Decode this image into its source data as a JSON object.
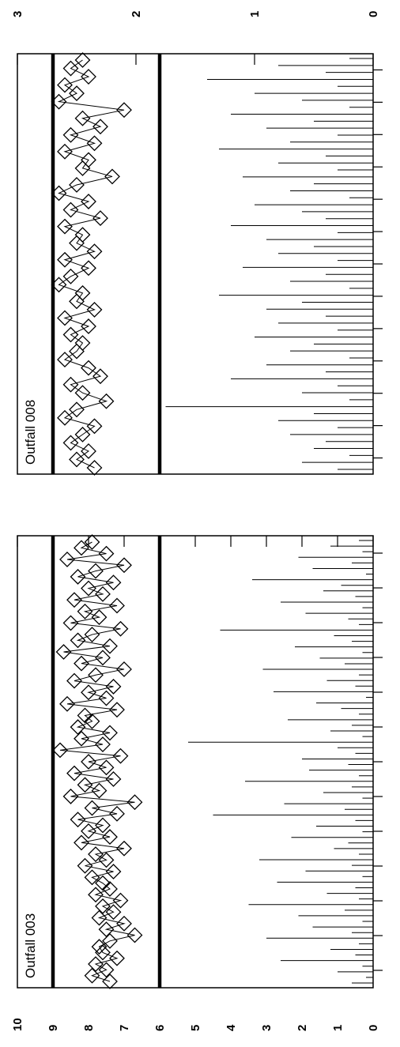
{
  "figure": {
    "background": "#ffffff",
    "ink": "#000000"
  },
  "chart_data": [
    {
      "type": "line",
      "title": "Outfall 003",
      "xlabel": "",
      "ylabel": "",
      "ylim": [
        0,
        10
      ],
      "y_ticks": [
        "0",
        "1",
        "2",
        "3",
        "4",
        "5",
        "6",
        "7",
        "8",
        "9",
        "10"
      ],
      "x_tick_count": 13,
      "reference_lines": [
        6,
        9
      ],
      "grid": false,
      "series": [
        {
          "marker": "diamond",
          "values": [
            7.9,
            8.2,
            7.5,
            8.6,
            7.0,
            7.8,
            8.3,
            7.3,
            8.0,
            7.6,
            8.4,
            7.2,
            8.1,
            7.7,
            8.5,
            7.1,
            7.9,
            8.3,
            7.4,
            8.7,
            7.6,
            8.2,
            7.0,
            7.8,
            8.4,
            7.3,
            8.0,
            7.5,
            8.6,
            7.2,
            8.1,
            7.9,
            8.3,
            7.4,
            8.2,
            7.6,
            8.8,
            7.1,
            8.0,
            7.5,
            8.4,
            7.3,
            8.1,
            7.7,
            8.5,
            6.7,
            7.9,
            7.2,
            8.3,
            7.6,
            8.0,
            7.4,
            8.2,
            7.0,
            7.8,
            7.5,
            8.1,
            7.3,
            7.9,
            7.6,
            7.4,
            7.8,
            7.1,
            7.6,
            7.3,
            7.7,
            7.0,
            7.5,
            6.7,
            7.4,
            7.7,
            7.6,
            7.2,
            7.8,
            7.5,
            7.9,
            7.4
          ]
        },
        {
          "marker": "none",
          "values": [
            0.4,
            1.2,
            0.3,
            2.1,
            0.6,
            1.7,
            0.2,
            3.4,
            0.9,
            1.4,
            0.5,
            2.6,
            0.3,
            1.9,
            0.7,
            0.4,
            4.3,
            1.1,
            0.6,
            2.2,
            0.3,
            1.5,
            0.8,
            3.1,
            0.4,
            1.3,
            0.5,
            2.8,
            0.2,
            1.6,
            0.9,
            0.4,
            2.4,
            0.6,
            1.2,
            0.3,
            5.2,
            1.0,
            0.5,
            2.0,
            0.7,
            1.8,
            0.4,
            3.6,
            0.6,
            1.4,
            0.3,
            2.5,
            0.8,
            4.5,
            0.5,
            1.6,
            0.3,
            2.3,
            0.7,
            1.1,
            0.4,
            3.2,
            0.6,
            1.9,
            0.3,
            2.7,
            0.5,
            1.3,
            0.4,
            3.5,
            0.8,
            2.1,
            0.3,
            1.7,
            0.6,
            3.0,
            0.4,
            1.2,
            0.5,
            2.6,
            0.3,
            1.0,
            0.2,
            0.6
          ]
        }
      ]
    },
    {
      "type": "line",
      "title": "Outfall 008",
      "xlabel": "",
      "ylabel": "",
      "ylim": [
        0,
        3
      ],
      "y_ticks": [
        "0",
        "1",
        "2",
        "3"
      ],
      "x_tick_count": 13,
      "reference_lines": [
        1.8,
        2.7
      ],
      "grid": false,
      "series": [
        {
          "marker": "diamond",
          "values": [
            2.45,
            2.55,
            2.4,
            2.6,
            2.5,
            2.65,
            2.1,
            2.45,
            2.3,
            2.55,
            2.35,
            2.6,
            2.4,
            2.45,
            2.2,
            2.5,
            2.65,
            2.4,
            2.55,
            2.3,
            2.6,
            2.45,
            2.5,
            2.35,
            2.6,
            2.4,
            2.55,
            2.65,
            2.45,
            2.5,
            2.35,
            2.6,
            2.4,
            2.55,
            2.45,
            2.5,
            2.6,
            2.4,
            2.3,
            2.55,
            2.45,
            2.25,
            2.5,
            2.6,
            2.35,
            2.45,
            2.55,
            2.4,
            2.5,
            2.35
          ]
        },
        {
          "marker": "none",
          "values": [
            0.2,
            0.8,
            0.4,
            1.4,
            0.3,
            1.0,
            0.6,
            0.2,
            1.2,
            0.5,
            0.9,
            0.3,
            0.7,
            1.3,
            0.4,
            0.8,
            0.3,
            1.1,
            0.5,
            0.7,
            0.2,
            1.0,
            0.6,
            0.4,
            1.2,
            0.3,
            0.9,
            0.5,
            0.8,
            0.3,
            1.1,
            0.4,
            0.7,
            0.2,
            1.3,
            0.6,
            0.9,
            0.4,
            0.8,
            0.3,
            1.0,
            0.5,
            0.7,
            0.2,
            0.9,
            0.4,
            1.2,
            0.3,
            0.6,
            0.2,
            1.75,
            0.5,
            0.8,
            0.3,
            0.7,
            0.4,
            0.5,
            0.2,
            0.6,
            0.3
          ]
        }
      ]
    }
  ]
}
